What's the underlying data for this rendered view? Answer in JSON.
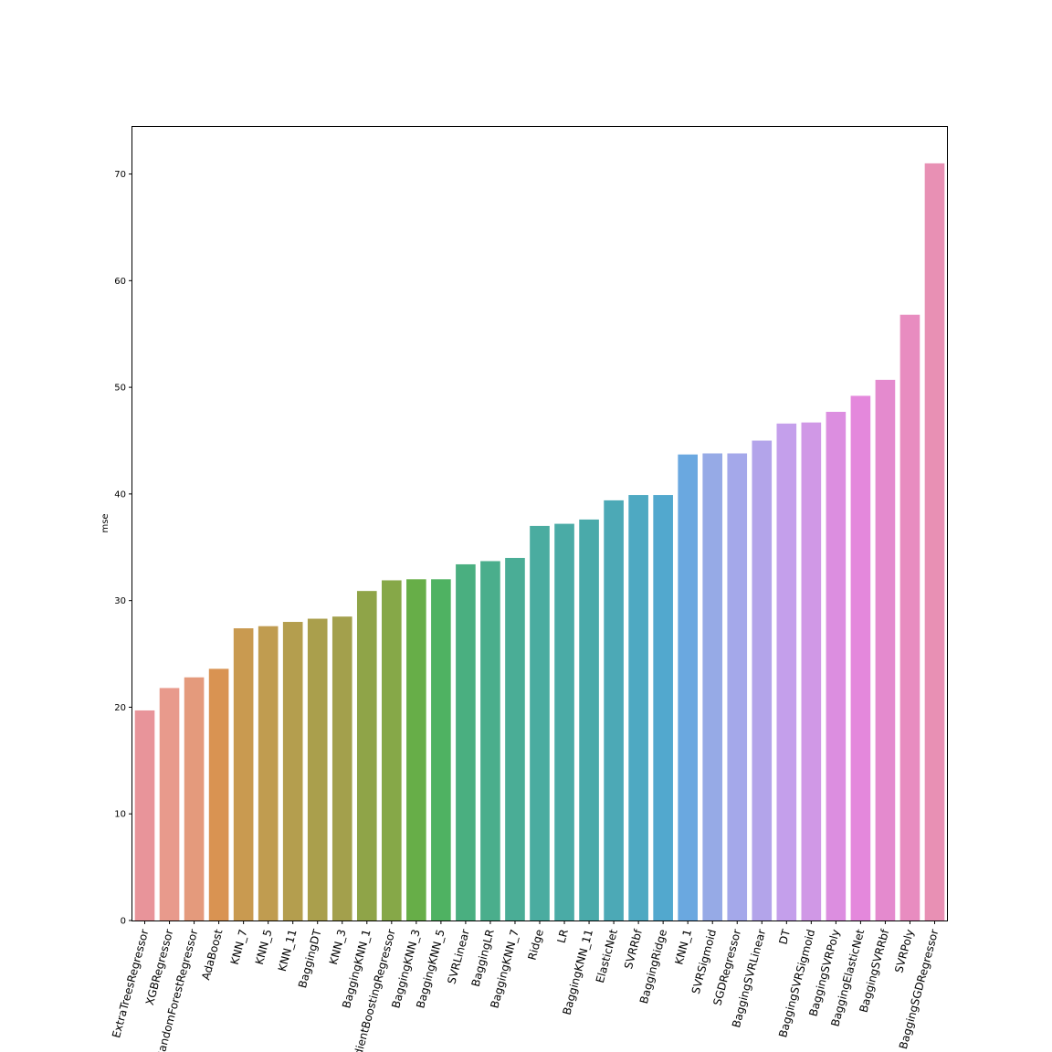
{
  "chart_data": {
    "type": "bar",
    "title": "",
    "xlabel": "",
    "ylabel": "mse",
    "ylim": [
      0,
      74.5
    ],
    "yticks": [
      0,
      10,
      20,
      30,
      40,
      50,
      60,
      70
    ],
    "grid": false,
    "legend": "none",
    "categories": [
      "ExtraTreesRegressor",
      "XGBRegressor",
      "RandomForestRegressor",
      "AdaBoost",
      "KNN_7",
      "KNN_5",
      "KNN_11",
      "BaggingDT",
      "KNN_3",
      "BaggingKNN_1",
      "GradientBoostingRegressor",
      "BaggingKNN_3",
      "BaggingKNN_5",
      "SVRLinear",
      "BaggingLR",
      "BaggingKNN_7",
      "Ridge",
      "LR",
      "BaggingKNN_11",
      "ElasticNet",
      "SVRRbf",
      "BaggingRidge",
      "KNN_1",
      "SVRSigmoid",
      "SGDRegressor",
      "BaggingSVRLinear",
      "DT",
      "BaggingSVRSigmoid",
      "BaggingSVRPoly",
      "BaggingElasticNet",
      "BaggingSVRRbf",
      "SVRPoly",
      "BaggingSGDRegressor"
    ],
    "values": [
      19.7,
      21.8,
      22.8,
      23.6,
      27.4,
      27.6,
      28.0,
      28.3,
      28.5,
      30.9,
      31.9,
      32.0,
      32.0,
      33.4,
      33.7,
      34.0,
      37.0,
      37.2,
      37.6,
      39.4,
      39.9,
      39.9,
      43.7,
      43.8,
      43.8,
      45.0,
      46.6,
      46.7,
      47.7,
      49.2,
      50.7,
      56.8,
      71.0
    ],
    "colors": [
      "#e8949a",
      "#e89a8c",
      "#e49a7c",
      "#d99352",
      "#c99a50",
      "#c09c50",
      "#b49e4e",
      "#aa9f4c",
      "#a3a04c",
      "#8fa448",
      "#86a848",
      "#67ae48",
      "#4fb262",
      "#4aaf80",
      "#4aae8c",
      "#4aad96",
      "#4aaca0",
      "#4aaba6",
      "#4aaaaa",
      "#4ca9b6",
      "#4ea9c2",
      "#52a8ce",
      "#6aa8e0",
      "#96aae6",
      "#a4a8ea",
      "#b3a4ea",
      "#c49feb",
      "#d098e6",
      "#dc8ee0",
      "#e488dc",
      "#e48ace",
      "#e88cc0",
      "#e890b4"
    ]
  }
}
